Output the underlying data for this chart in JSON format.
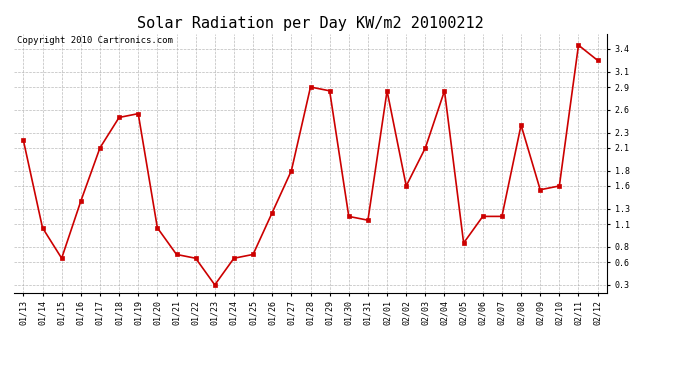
{
  "title": "Solar Radiation per Day KW/m2 20100212",
  "copyright_text": "Copyright 2010 Cartronics.com",
  "labels": [
    "01/13",
    "01/14",
    "01/15",
    "01/16",
    "01/17",
    "01/18",
    "01/19",
    "01/20",
    "01/21",
    "01/22",
    "01/23",
    "01/24",
    "01/25",
    "01/26",
    "01/27",
    "01/28",
    "01/29",
    "01/30",
    "01/31",
    "02/01",
    "02/02",
    "02/03",
    "02/04",
    "02/05",
    "02/06",
    "02/07",
    "02/08",
    "02/09",
    "02/10",
    "02/11",
    "02/12"
  ],
  "values": [
    2.2,
    1.05,
    0.65,
    1.4,
    2.1,
    2.5,
    2.55,
    1.05,
    0.7,
    0.65,
    0.3,
    0.65,
    0.7,
    1.25,
    1.8,
    2.9,
    2.85,
    1.2,
    1.15,
    2.85,
    1.6,
    2.1,
    2.85,
    0.85,
    1.2,
    1.2,
    2.4,
    1.55,
    1.6,
    3.45,
    3.25
  ],
  "line_color": "#cc0000",
  "marker": "s",
  "marker_size": 2.5,
  "marker_color": "#cc0000",
  "ylim": [
    0.2,
    3.6
  ],
  "yticks": [
    0.3,
    0.6,
    0.8,
    1.1,
    1.3,
    1.6,
    1.8,
    2.1,
    2.3,
    2.6,
    2.9,
    3.1,
    3.4
  ],
  "bg_color": "#ffffff",
  "grid_color": "#aaaaaa",
  "title_fontsize": 11,
  "copyright_fontsize": 6.5,
  "tick_fontsize": 6,
  "linewidth": 1.2
}
